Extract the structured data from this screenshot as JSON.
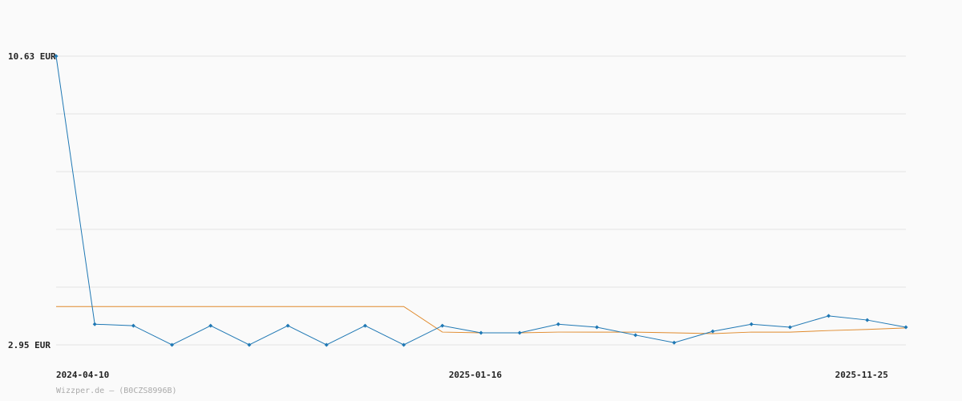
{
  "chart_data": {
    "type": "line",
    "categories": [
      "2024-04-10",
      null,
      null,
      null,
      null,
      null,
      null,
      null,
      null,
      null,
      "2025-01-16",
      null,
      null,
      null,
      null,
      null,
      null,
      null,
      null,
      null,
      "2025-11-25",
      null,
      null
    ],
    "series": [
      {
        "color": "#1f78b4",
        "markers": true,
        "values": [
          10.63,
          3.5,
          3.46,
          2.95,
          3.46,
          2.95,
          3.46,
          2.95,
          3.46,
          2.95,
          3.46,
          3.27,
          3.27,
          3.5,
          3.42,
          3.21,
          3.01,
          3.31,
          3.5,
          3.42,
          3.72,
          3.61,
          3.42
        ]
      },
      {
        "color": "#e08a2c",
        "markers": false,
        "values": [
          3.97,
          3.97,
          3.97,
          3.97,
          3.97,
          3.97,
          3.97,
          3.97,
          3.97,
          3.97,
          3.29,
          3.27,
          3.27,
          3.29,
          3.29,
          3.29,
          3.27,
          3.25,
          3.29,
          3.29,
          3.33,
          3.36,
          3.4
        ]
      }
    ],
    "ylim": [
      2.95,
      10.63
    ],
    "yticks": [
      {
        "value": 2.95,
        "label": "2.95 EUR"
      },
      {
        "value": 4.486,
        "label": null
      },
      {
        "value": 6.022,
        "label": null
      },
      {
        "value": 7.558,
        "label": null
      },
      {
        "value": 9.094,
        "label": null
      },
      {
        "value": 10.63,
        "label": "10.63 EUR"
      }
    ],
    "grid": true,
    "footer": "Wizzper.de – (B0CZS8996B)"
  }
}
